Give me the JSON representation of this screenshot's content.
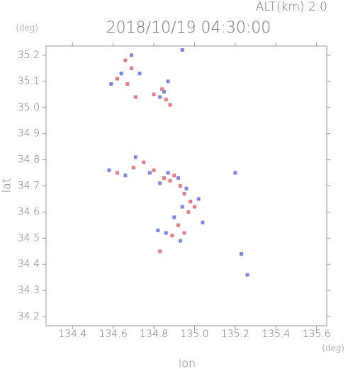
{
  "chart_data": {
    "type": "scatter",
    "title": "2018/10/19 04:30:00",
    "subtitle": "ALT(km) 2.0",
    "x_label": "lon",
    "x_unit": "(deg)",
    "y_label": "lat",
    "y_unit": "(deg)",
    "xlim": [
      134.27,
      135.65
    ],
    "ylim": [
      34.165,
      35.235
    ],
    "xticks": [
      134.4,
      134.6,
      134.8,
      {
        "value": 135,
        "label": "135.0"
      },
      135.2,
      135.4,
      135.6
    ],
    "yticks": [
      34.2,
      34.3,
      34.4,
      34.5,
      34.6,
      34.7,
      34.8,
      34.9,
      {
        "value": 35,
        "label": "35.0"
      },
      35.1,
      35.2
    ],
    "series": [
      {
        "color": "#f27a85",
        "x": [
          134.66,
          134.69,
          134.62,
          134.67,
          134.71,
          134.84,
          134.86,
          134.88,
          134.8,
          134.7,
          134.75,
          134.8,
          134.85,
          134.9,
          134.93,
          134.95,
          134.98,
          135.0,
          134.62,
          134.88,
          134.92,
          134.89,
          134.95,
          134.83,
          134.97
        ],
        "y": [
          35.18,
          35.15,
          35.11,
          35.09,
          35.04,
          35.07,
          35.03,
          35.01,
          35.05,
          34.77,
          34.79,
          34.76,
          34.73,
          34.74,
          34.7,
          34.67,
          34.64,
          34.62,
          34.75,
          34.72,
          34.55,
          34.51,
          34.52,
          34.45,
          34.6
        ]
      },
      {
        "color": "#7f86f0",
        "x": [
          134.69,
          134.73,
          134.59,
          134.64,
          134.87,
          134.83,
          134.94,
          134.85,
          134.58,
          134.66,
          134.71,
          134.78,
          134.83,
          134.87,
          134.92,
          134.96,
          135.02,
          134.94,
          134.9,
          134.86,
          134.93,
          134.82,
          135.26,
          135.2,
          135.23,
          135.04
        ],
        "y": [
          35.2,
          35.13,
          35.09,
          35.13,
          35.1,
          35.04,
          35.22,
          35.06,
          34.76,
          34.74,
          34.81,
          34.75,
          34.71,
          34.75,
          34.73,
          34.69,
          34.65,
          34.62,
          34.58,
          34.52,
          34.49,
          34.53,
          34.36,
          34.75,
          34.44,
          34.56
        ]
      }
    ]
  }
}
